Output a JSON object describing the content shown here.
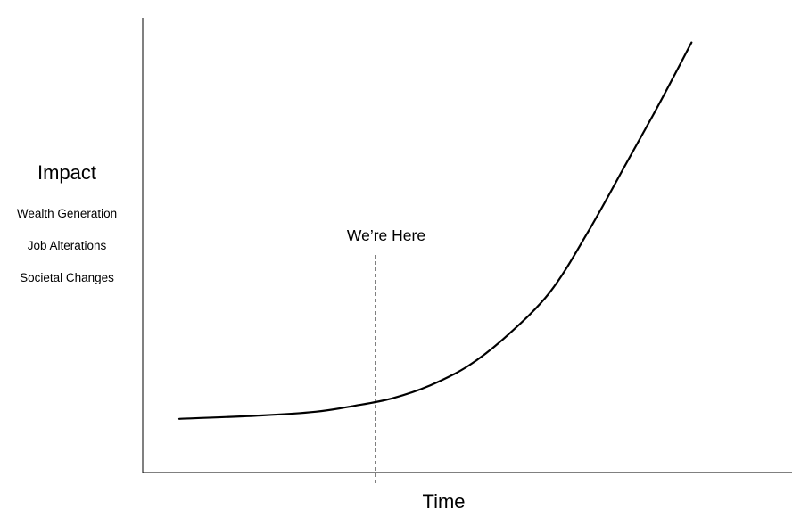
{
  "chart_data": {
    "type": "line",
    "title": "",
    "xlabel": "Time",
    "ylabel": "Impact",
    "ylabel_sub": [
      "Wealth Generation",
      "Job Alterations",
      "Societal Changes"
    ],
    "grid": false,
    "legend": "none",
    "xlim": [
      0,
      100
    ],
    "ylim": [
      0,
      100
    ],
    "series": [
      {
        "values": [
          {
            "x": 0,
            "y": 6.9
          },
          {
            "x": 15,
            "y": 7.7
          },
          {
            "x": 25,
            "y": 8.6
          },
          {
            "x": 32,
            "y": 10.0
          },
          {
            "x": 39,
            "y": 11.8
          },
          {
            "x": 46,
            "y": 14.9
          },
          {
            "x": 53,
            "y": 19.6
          },
          {
            "x": 60,
            "y": 26.7
          },
          {
            "x": 68,
            "y": 37.3
          },
          {
            "x": 75,
            "y": 51.8
          },
          {
            "x": 82,
            "y": 68.2
          },
          {
            "x": 87,
            "y": 80.0
          },
          {
            "x": 90,
            "y": 87.3
          },
          {
            "x": 94,
            "y": 97.3
          }
        ],
        "color": "#000000"
      }
    ],
    "annotations": [
      {
        "text": "We’re Here",
        "x": 36,
        "style": "dashed-vertical-line"
      }
    ]
  }
}
